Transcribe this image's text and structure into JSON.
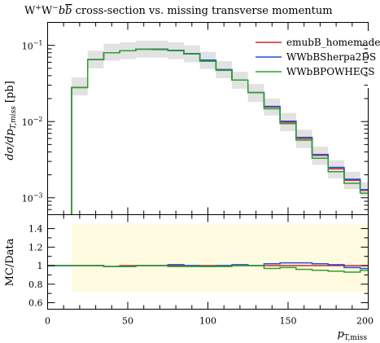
{
  "chart_data": {
    "type": "line",
    "title": "W⁺W⁻bb̄ cross-section vs. missing transverse momentum",
    "title_parts": {
      "main": "W",
      "sup1": "+",
      "w2": "W",
      "sup2": "−",
      "b1": "b",
      "b2": "b",
      "rest": " cross-section vs. missing transverse momentum"
    },
    "xlabel": "pT,miss",
    "xlabel_parts": {
      "main": "p",
      "sub": "T,miss"
    },
    "ylabel": "dσ/dpT,miss [pb]",
    "ylabel_parts": {
      "pre": "dσ/dp",
      "sub": "T,miss",
      "post": " [pb]"
    },
    "ratio_ylabel": "MC/Data",
    "xlim": [
      0,
      200
    ],
    "ylim_log": [
      0.0006,
      0.2
    ],
    "ratio_ylim": [
      0.53,
      1.55
    ],
    "x_ticks": [
      0,
      50,
      100,
      150,
      200
    ],
    "x_tick_labels": [
      "0",
      "50",
      "100",
      "150",
      "200"
    ],
    "y_ticks": [
      0.001,
      0.01,
      0.1
    ],
    "y_tick_labels": [
      {
        "base": "10",
        "exp": "−3"
      },
      {
        "base": "10",
        "exp": "−2"
      },
      {
        "base": "10",
        "exp": "−1"
      }
    ],
    "ratio_ticks": [
      0.6,
      0.8,
      1.0,
      1.2,
      1.4
    ],
    "ratio_tick_labels": [
      "0.6",
      "0.8",
      "1",
      "1.2",
      "1.4"
    ],
    "bin_edges": [
      15,
      25,
      35,
      45,
      55,
      65,
      75,
      85,
      95,
      105,
      115,
      125,
      135,
      145,
      155,
      165,
      175,
      185,
      195,
      200
    ],
    "data_band": {
      "upper": [
        0.038,
        0.085,
        0.105,
        0.11,
        0.115,
        0.115,
        0.11,
        0.1,
        0.082,
        0.062,
        0.045,
        0.031,
        0.02,
        0.013,
        0.0078,
        0.0047,
        0.0031,
        0.0022,
        0.0016
      ],
      "lower": [
        0.022,
        0.05,
        0.063,
        0.066,
        0.069,
        0.069,
        0.066,
        0.06,
        0.049,
        0.037,
        0.027,
        0.018,
        0.012,
        0.0075,
        0.0045,
        0.0027,
        0.0018,
        0.0013,
        0.00105
      ]
    },
    "ratio_band": {
      "upper": 1.45,
      "lower": 0.72
    },
    "series": [
      {
        "name": "emubB_homemade",
        "color": "#d62728",
        "values": [
          0.028,
          0.065,
          0.08,
          0.085,
          0.089,
          0.089,
          0.085,
          0.077,
          0.063,
          0.048,
          0.035,
          0.024,
          0.0155,
          0.0098,
          0.006,
          0.0036,
          0.0024,
          0.0017,
          0.00125
        ],
        "ratio": [
          1.0,
          1.0,
          0.99,
          1.0,
          1.0,
          1.0,
          1.0,
          1.0,
          1.0,
          1.0,
          1.0,
          1.0,
          1.0,
          1.0,
          1.0,
          1.0,
          1.0,
          1.0,
          1.0
        ]
      },
      {
        "name": "WWbBSherpa2DS",
        "color": "#1f4fd6",
        "values": [
          0.028,
          0.065,
          0.08,
          0.085,
          0.089,
          0.089,
          0.086,
          0.078,
          0.064,
          0.048,
          0.035,
          0.024,
          0.0158,
          0.0101,
          0.0062,
          0.0037,
          0.0025,
          0.00175,
          0.00128
        ],
        "ratio": [
          1.0,
          1.0,
          0.99,
          0.99,
          1.0,
          1.0,
          1.01,
          1.0,
          0.99,
          1.0,
          1.01,
          1.0,
          1.02,
          1.03,
          1.03,
          1.02,
          1.01,
          0.98,
          0.97
        ]
      },
      {
        "name": "WWbBPOWHEGS",
        "color": "#2ca02c",
        "values": [
          0.028,
          0.065,
          0.08,
          0.085,
          0.089,
          0.088,
          0.085,
          0.077,
          0.062,
          0.047,
          0.035,
          0.024,
          0.0147,
          0.0094,
          0.0057,
          0.0033,
          0.0022,
          0.00155,
          0.00115
        ],
        "ratio": [
          1.0,
          1.0,
          0.99,
          0.99,
          1.0,
          1.0,
          0.99,
          0.99,
          0.99,
          0.99,
          1.0,
          1.0,
          0.97,
          0.98,
          0.96,
          0.95,
          0.94,
          0.93,
          0.95
        ]
      }
    ],
    "legend": "top-right"
  }
}
